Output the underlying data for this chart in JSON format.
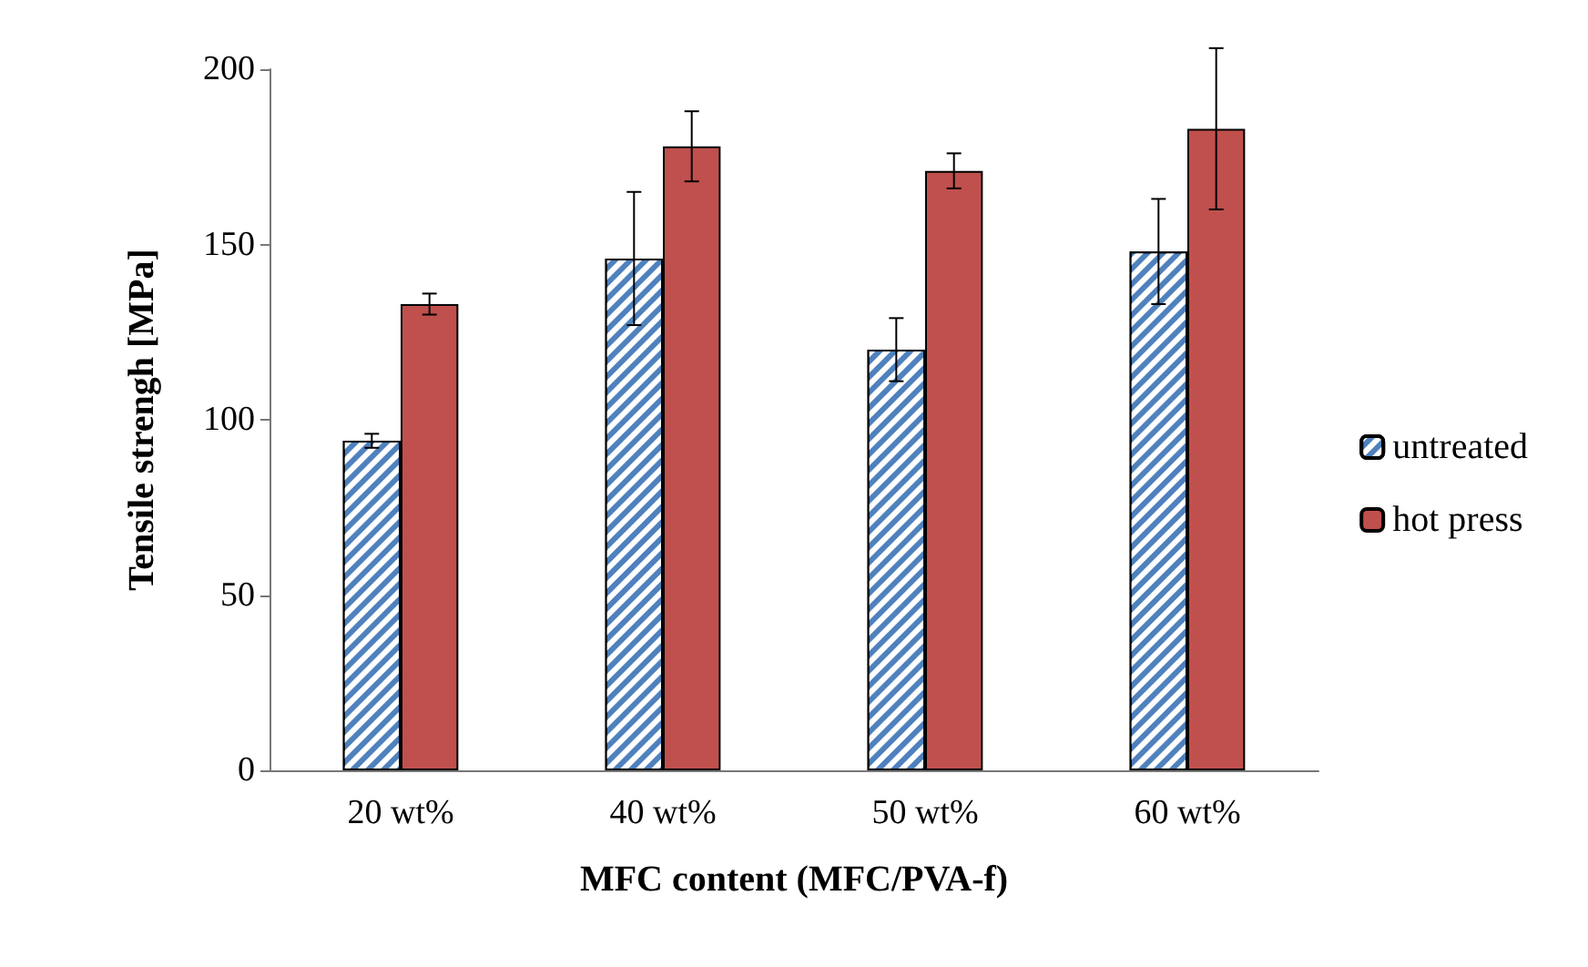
{
  "chart_data": {
    "type": "bar",
    "xlabel": "MFC content (MFC/PVA-f)",
    "ylabel": "Tensile strengh [MPa]",
    "categories": [
      "20 wt%",
      "40 wt%",
      "50 wt%",
      "60 wt%"
    ],
    "series": [
      {
        "name": "untreated",
        "color": "#4f81bd",
        "values": [
          94,
          146,
          120,
          148
        ],
        "errors": [
          2,
          19,
          9,
          15
        ]
      },
      {
        "name": "hot press",
        "color": "#c0504d",
        "values": [
          133,
          178,
          171,
          183
        ],
        "errors": [
          3,
          10,
          5,
          23
        ]
      }
    ],
    "ylim": [
      0,
      200
    ],
    "yticks": [
      0,
      50,
      100,
      150,
      200
    ],
    "grid": false,
    "legend": "right"
  }
}
